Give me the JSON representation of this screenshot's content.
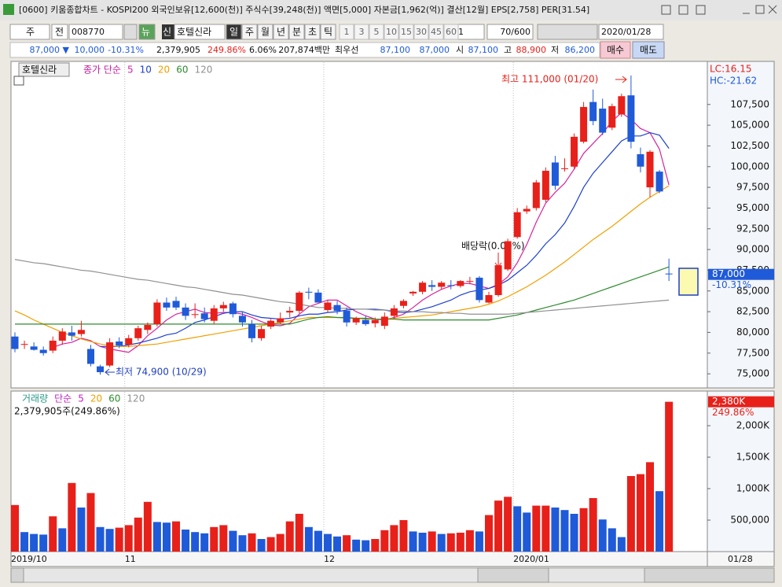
{
  "window": {
    "title": "[0600] 키움종합차트 - KOSPI200 외국인보유[12,600(천)] 주식수[39,248(천)] 액면[5,000] 자본금[1,962(억)] 결산[12월] EPS[2,758] PER[31.54]"
  },
  "toolbar": {
    "market": "주",
    "scope": "전",
    "code": "008770",
    "news": "뉴",
    "credit": "신",
    "name": "호텔신라",
    "periods": [
      "일",
      "주",
      "월",
      "년",
      "분",
      "초",
      "틱"
    ],
    "intervals": [
      "1",
      "3",
      "5",
      "10",
      "15",
      "30",
      "45",
      "60"
    ],
    "multiplier": "1",
    "count": "70/600",
    "date": "2020/01/28"
  },
  "quote": {
    "price": "87,000 ▼",
    "change": "10,000",
    "change_rate": "-10.31%",
    "volume": "2,379,905",
    "volume_rate": "249.86%",
    "turnover": "6.06%",
    "amount": "207,874백만",
    "best_label": "최우선",
    "best_ask": "87,100",
    "best_bid": "87,000",
    "open_label": "시",
    "open": "87,100",
    "high_label": "고",
    "high": "88,900",
    "low_label": "저",
    "low": "86,200",
    "buy": "매수",
    "sell": "매도"
  },
  "chart_data": [
    {
      "type": "candlestick",
      "title": "호텔신라",
      "legend_label": "종가 단순",
      "lc": "LC:16.15",
      "hc": "HC:-21.62",
      "open": [
        79500,
        78500,
        78300,
        77900,
        77800,
        79000,
        80000,
        79800,
        78000,
        75900,
        76000,
        78900,
        78500,
        79300,
        80300,
        81000,
        83600,
        83800,
        83000,
        82200,
        82300,
        81400,
        82900,
        83500,
        82000,
        81000,
        79300,
        80700,
        81200,
        82400,
        82600,
        84900,
        84800,
        82700,
        83300,
        82600,
        81200,
        81500,
        81100,
        80800,
        82000,
        83200,
        84700,
        84900,
        85700,
        85500,
        85700,
        85600,
        86200,
        86600,
        83600,
        84500,
        87600,
        91500,
        94600,
        95000,
        96000,
        100500,
        99700,
        100000,
        103000,
        107800,
        107000,
        104700,
        106300,
        108600,
        101500,
        97500,
        99400,
        87100
      ],
      "high": [
        80000,
        79000,
        78800,
        78300,
        79500,
        80500,
        80800,
        81400,
        78500,
        76100,
        79300,
        79400,
        79700,
        80800,
        81200,
        84000,
        84200,
        84300,
        83500,
        83500,
        83000,
        83300,
        83700,
        83700,
        82500,
        81500,
        80800,
        81600,
        82400,
        83100,
        85000,
        85400,
        85200,
        83900,
        83800,
        83000,
        81900,
        82000,
        81800,
        82400,
        83300,
        84000,
        85000,
        86200,
        86300,
        86200,
        86300,
        86300,
        86700,
        86800,
        84900,
        88600,
        91300,
        95000,
        95300,
        98400,
        99900,
        101300,
        101000,
        104000,
        107800,
        109300,
        108200,
        107600,
        108800,
        111000,
        102300,
        102000,
        99600,
        88900
      ],
      "low": [
        77600,
        78000,
        77800,
        77200,
        77500,
        78500,
        79000,
        79500,
        75900,
        74900,
        75800,
        78100,
        78200,
        79000,
        79800,
        80700,
        82600,
        82700,
        81500,
        81700,
        81200,
        81000,
        82500,
        81800,
        80700,
        78800,
        79000,
        80400,
        81000,
        81800,
        82300,
        84000,
        83600,
        82400,
        82200,
        80700,
        80900,
        80800,
        80600,
        80400,
        81600,
        82900,
        84400,
        84600,
        85000,
        85200,
        85200,
        85400,
        85800,
        83600,
        83500,
        84300,
        87400,
        91300,
        94300,
        94700,
        95700,
        97200,
        99400,
        99700,
        102800,
        105000,
        103800,
        104400,
        106000,
        102200,
        99300,
        96300,
        96800,
        86200
      ],
      "close": [
        78000,
        78600,
        77900,
        77500,
        79000,
        80100,
        79600,
        80300,
        76200,
        75200,
        78800,
        78400,
        79300,
        80500,
        80900,
        83600,
        83000,
        83000,
        82000,
        82200,
        81600,
        82900,
        83300,
        82200,
        81200,
        79300,
        80400,
        81400,
        81700,
        82600,
        84800,
        84800,
        83600,
        83600,
        82600,
        81200,
        81700,
        81000,
        81500,
        81900,
        82900,
        83800,
        84900,
        86000,
        85500,
        86000,
        85600,
        86200,
        86200,
        83900,
        84500,
        88100,
        91000,
        94500,
        94900,
        98100,
        99500,
        97700,
        99800,
        103600,
        107200,
        105500,
        104100,
        107300,
        108500,
        103000,
        100000,
        101800,
        97000,
        87000
      ],
      "up_color": "#e8201a",
      "down_color": "#1f5ad8",
      "series": [
        {
          "name": "5",
          "color": "#d6249f",
          "values": [
            null,
            null,
            null,
            null,
            78200,
            78600,
            78800,
            79300,
            79000,
            78300,
            78000,
            77800,
            77600,
            78400,
            79600,
            80500,
            81500,
            82200,
            82500,
            82800,
            82400,
            82300,
            82400,
            82400,
            82200,
            81800,
            81300,
            80900,
            80800,
            81100,
            82200,
            83100,
            83500,
            83900,
            83900,
            83200,
            82500,
            82000,
            81600,
            81500,
            81800,
            82200,
            83000,
            83900,
            84600,
            85200,
            85600,
            85900,
            85900,
            85600,
            85300,
            85800,
            86700,
            88400,
            90600,
            93300,
            95600,
            96900,
            98000,
            99700,
            101600,
            102800,
            104000,
            105500,
            106500,
            105700,
            104600,
            104100,
            102100,
            97800
          ]
        },
        {
          "name": "10",
          "color": "#1c3fcf",
          "values": [
            null,
            null,
            null,
            null,
            null,
            null,
            null,
            null,
            null,
            78300,
            78300,
            78300,
            78500,
            78700,
            79000,
            79300,
            79700,
            79900,
            80500,
            81200,
            81500,
            81900,
            82300,
            82500,
            82500,
            82100,
            81800,
            81700,
            81600,
            81700,
            82000,
            82200,
            82200,
            82400,
            82500,
            82700,
            82800,
            82800,
            82800,
            82700,
            82500,
            82400,
            82500,
            82800,
            83100,
            83500,
            83900,
            84500,
            84900,
            85100,
            85300,
            85700,
            86300,
            87200,
            88100,
            89300,
            90700,
            91800,
            93200,
            95200,
            97500,
            99200,
            100500,
            101800,
            103100,
            103700,
            103700,
            104100,
            103800,
            102200
          ]
        },
        {
          "name": "20",
          "color": "#f0a000",
          "values": [
            82600,
            82100,
            81500,
            81000,
            80500,
            80000,
            79600,
            79200,
            78900,
            78600,
            78400,
            78300,
            78300,
            78400,
            78500,
            78600,
            78800,
            79000,
            79200,
            79400,
            79600,
            79800,
            80000,
            80200,
            80400,
            80600,
            80800,
            81000,
            81200,
            81400,
            81600,
            81800,
            81800,
            81800,
            81800,
            81700,
            81700,
            81600,
            81600,
            81600,
            81700,
            81800,
            81900,
            82000,
            82100,
            82300,
            82500,
            82700,
            82900,
            83100,
            83400,
            83800,
            84300,
            84900,
            85500,
            86200,
            86900,
            87700,
            88500,
            89400,
            90300,
            91200,
            92000,
            92800,
            93700,
            94600,
            95500,
            96300,
            97000,
            97700
          ]
        },
        {
          "name": "60",
          "color": "#2e8b2e",
          "values": [
            81000,
            81000,
            81000,
            81000,
            81000,
            81000,
            81000,
            81000,
            81000,
            81000,
            81000,
            81000,
            81000,
            81000,
            81000,
            81000,
            81000,
            81000,
            81000,
            81000,
            81000,
            81000,
            81000,
            81000,
            81000,
            81000,
            81000,
            81000,
            81000,
            81000,
            81300,
            81600,
            81800,
            81900,
            81800,
            81800,
            81700,
            81700,
            81600,
            81600,
            81600,
            81500,
            81500,
            81500,
            81500,
            81500,
            81500,
            81500,
            81500,
            81500,
            81500,
            81700,
            81900,
            82100,
            82400,
            82700,
            83000,
            83300,
            83600,
            83900,
            84300,
            84700,
            85100,
            85500,
            85900,
            86300,
            86700,
            87100,
            87500,
            87900
          ]
        },
        {
          "name": "120",
          "color": "#909090",
          "values": [
            88800,
            88600,
            88400,
            88300,
            88100,
            87900,
            87700,
            87500,
            87400,
            87200,
            87000,
            86800,
            86600,
            86400,
            86300,
            86100,
            85900,
            85700,
            85500,
            85400,
            85200,
            85000,
            84800,
            84600,
            84500,
            84300,
            84100,
            83900,
            83700,
            83600,
            83400,
            83200,
            83000,
            83000,
            82900,
            82900,
            82800,
            82800,
            82700,
            82700,
            82600,
            82600,
            82500,
            82500,
            82400,
            82400,
            82300,
            82300,
            82200,
            82200,
            82200,
            82200,
            82200,
            82300,
            82400,
            82500,
            82600,
            82700,
            82800,
            82900,
            83000,
            83100,
            83200,
            83300,
            83400,
            83500,
            83600,
            83700,
            83800,
            83900
          ]
        }
      ],
      "ylim": [
        73300,
        112700
      ],
      "yticks": [
        {
          "value": 75000,
          "label": "75,000"
        },
        {
          "value": 77500,
          "label": "77,500"
        },
        {
          "value": 80000,
          "label": "80,000"
        },
        {
          "value": 82500,
          "label": "82,500"
        },
        {
          "value": 85000,
          "label": "85,000"
        },
        {
          "value": 87500,
          "label": "87,500"
        },
        {
          "value": 90000,
          "label": "90,000"
        },
        {
          "value": 92500,
          "label": "92,500"
        },
        {
          "value": 95000,
          "label": "95,000"
        },
        {
          "value": 97500,
          "label": "97,500"
        },
        {
          "value": 100000,
          "label": "100,000"
        },
        {
          "value": 102500,
          "label": "102,500"
        },
        {
          "value": 105000,
          "label": "105,000"
        },
        {
          "value": 107500,
          "label": "107,500"
        }
      ],
      "current": {
        "value": 87000,
        "label": "87,000",
        "change": "-10.31%"
      },
      "annotations": {
        "high": "최고 111,000 (01/20)",
        "low": "최저 74,900 (10/29)",
        "ex_dividend": "배당락(0.00%)"
      }
    },
    {
      "type": "bar",
      "title": "거래량",
      "legend_label": "단순",
      "legend": [
        {
          "label": "5",
          "color": "#c020c0"
        },
        {
          "label": "20",
          "color": "#f0a000"
        },
        {
          "label": "60",
          "color": "#2e8b2e"
        },
        {
          "label": "120",
          "color": "#909090"
        }
      ],
      "info": "2,379,905주(249.86%)",
      "categories": [
        "2019/10",
        null,
        null,
        null,
        null,
        null,
        null,
        null,
        null,
        null,
        null,
        null,
        "11",
        null,
        null,
        null,
        null,
        null,
        null,
        null,
        null,
        null,
        null,
        null,
        null,
        null,
        null,
        null,
        null,
        null,
        null,
        null,
        null,
        "12",
        null,
        null,
        null,
        null,
        null,
        null,
        null,
        null,
        null,
        null,
        null,
        null,
        null,
        null,
        null,
        null,
        null,
        null,
        null,
        "2020/01",
        null,
        null,
        null,
        null,
        null,
        null,
        null,
        null,
        null,
        null,
        null,
        null,
        null,
        null,
        null,
        null
      ],
      "values": [
        740000,
        310000,
        280000,
        270000,
        560000,
        370000,
        1090000,
        700000,
        930000,
        390000,
        360000,
        380000,
        420000,
        540000,
        790000,
        470000,
        460000,
        480000,
        350000,
        310000,
        290000,
        390000,
        420000,
        330000,
        260000,
        290000,
        200000,
        230000,
        280000,
        480000,
        600000,
        390000,
        330000,
        280000,
        240000,
        260000,
        190000,
        180000,
        200000,
        340000,
        420000,
        500000,
        320000,
        300000,
        320000,
        280000,
        290000,
        300000,
        340000,
        320000,
        580000,
        810000,
        870000,
        720000,
        620000,
        730000,
        730000,
        700000,
        660000,
        600000,
        690000,
        850000,
        510000,
        370000,
        230000,
        1200000,
        1230000,
        1420000,
        960000,
        2379905
      ],
      "up_color": "#e8201a",
      "down_color": "#1f5ad8",
      "ylim": [
        0,
        2550000
      ],
      "yticks": [
        {
          "value": 500000,
          "label": "500,000"
        },
        {
          "value": 1000000,
          "label": "1,000K"
        },
        {
          "value": 1500000,
          "label": "1,500K"
        },
        {
          "value": 2000000,
          "label": "2,000K"
        }
      ],
      "current": {
        "value": 2379905,
        "label": "2,380K",
        "change": "249.86%"
      },
      "axis_end": "01/28"
    }
  ]
}
